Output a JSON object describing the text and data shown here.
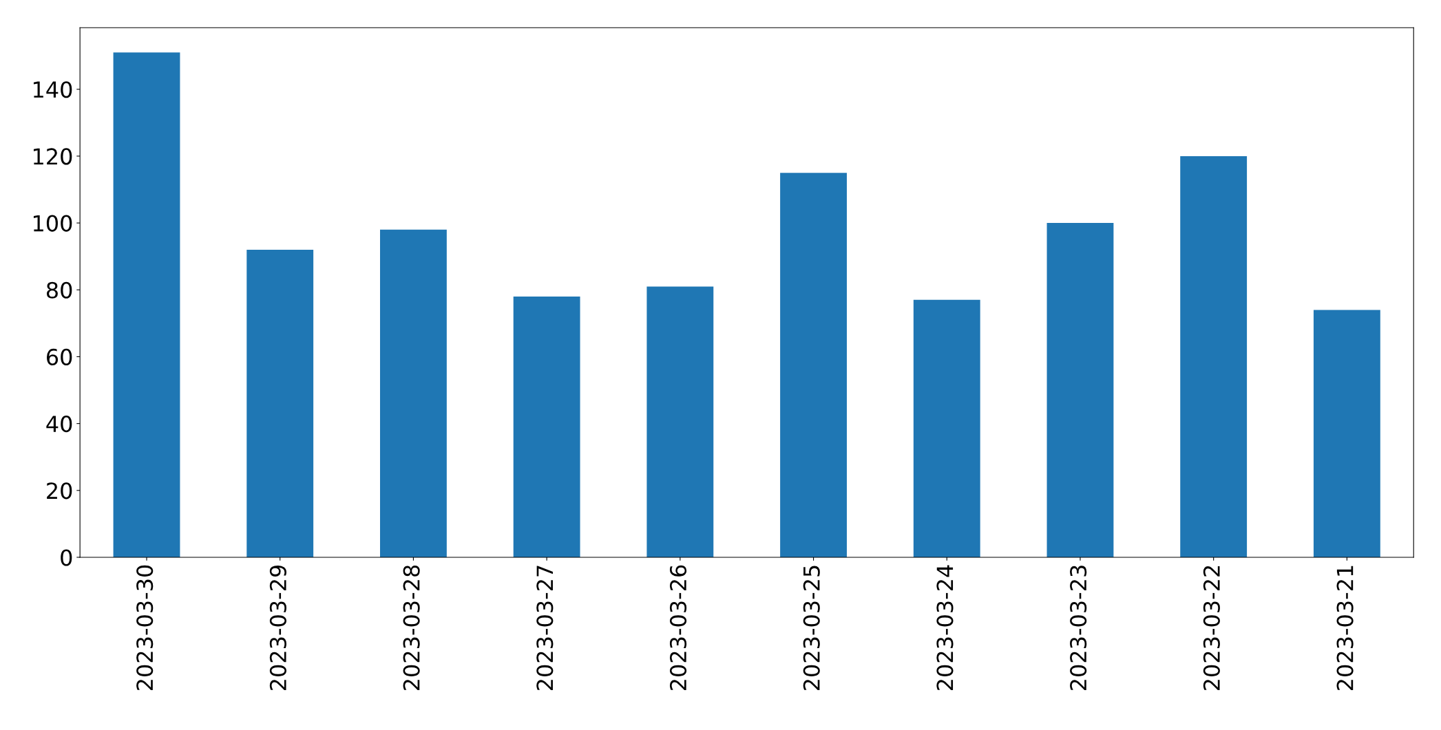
{
  "chart_data": {
    "type": "bar",
    "categories": [
      "2023-03-30",
      "2023-03-29",
      "2023-03-28",
      "2023-03-27",
      "2023-03-26",
      "2023-03-25",
      "2023-03-24",
      "2023-03-23",
      "2023-03-22",
      "2023-03-21"
    ],
    "values": [
      151,
      92,
      98,
      78,
      81,
      115,
      77,
      100,
      120,
      74
    ],
    "color": "#1f77b4",
    "ylim": [
      0,
      158.4
    ],
    "yticks": [
      0,
      20,
      40,
      60,
      80,
      100,
      120,
      140
    ],
    "grid": false,
    "legend": false
  }
}
